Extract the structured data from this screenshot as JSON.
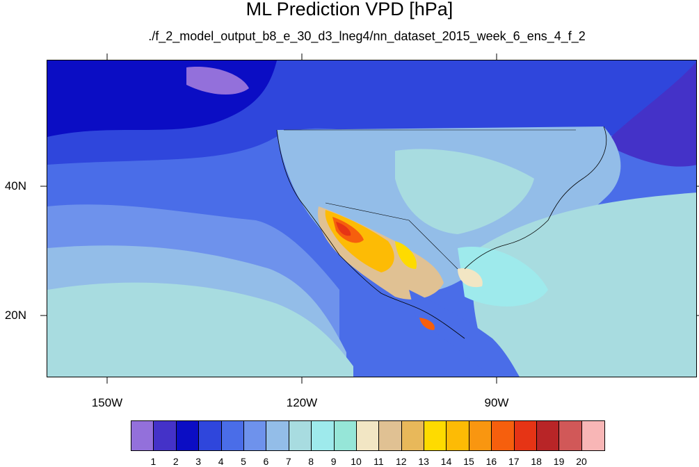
{
  "title": "ML Prediction VPD [hPa]",
  "subtitle": "./f_2_model_output_b8_e_30_d3_lneg4/nn_dataset_2015_week_6_ens_4_f_2",
  "map": {
    "x_axis": {
      "ticks": [
        -150,
        -120,
        -90
      ],
      "labels": [
        "150W",
        "120W",
        "90W"
      ],
      "range": [
        -160,
        -60
      ]
    },
    "y_axis": {
      "ticks": [
        40,
        20
      ],
      "labels": [
        "40N",
        "20N"
      ],
      "range": [
        10,
        58
      ]
    }
  },
  "colorbar": {
    "labels": [
      "1",
      "2",
      "3",
      "4",
      "5",
      "6",
      "7",
      "8",
      "9",
      "10",
      "11",
      "12",
      "13",
      "14",
      "15",
      "16",
      "17",
      "18",
      "19",
      "20"
    ],
    "colors": [
      "#9370db",
      "#4432c8",
      "#0b0dc4",
      "#2f46dc",
      "#4a6de8",
      "#6e92ec",
      "#93bde8",
      "#a8dce0",
      "#9eeaec",
      "#96e6d8",
      "#f2e6c4",
      "#e0c193",
      "#e8b85a",
      "#fedb00",
      "#fdbb05",
      "#f99610",
      "#f65f0d",
      "#e63415",
      "#b82527",
      "#d15858",
      "#f8b6b6"
    ]
  }
}
